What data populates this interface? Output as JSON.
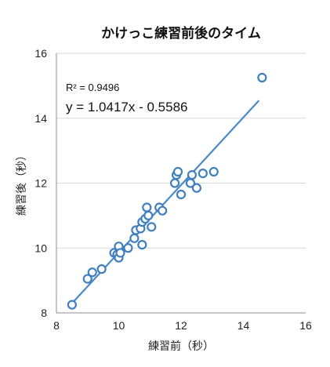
{
  "chart_data": {
    "type": "scatter",
    "title": "かけっこ練習前後のタイム",
    "xlabel": "練習前（秒）",
    "ylabel": "練習後（秒）",
    "xlim": [
      8,
      16
    ],
    "ylim": [
      8,
      16
    ],
    "x_ticks": [
      "8",
      "10",
      "12",
      "14",
      "16"
    ],
    "y_ticks": [
      "8",
      "10",
      "12",
      "14",
      "16"
    ],
    "grid": "horizontal",
    "r_squared_label": "R² = 0.9496",
    "equation_label": "y = 1.0417x - 0.5586",
    "trendline": {
      "slope": 1.0417,
      "intercept": -0.5586,
      "x_range": [
        8.5,
        14.5
      ]
    },
    "colors": {
      "marker": "#3f7fbf",
      "trendline": "#4a8ac9"
    },
    "series": [
      {
        "points": [
          [
            8.5,
            8.25
          ],
          [
            9.0,
            9.05
          ],
          [
            9.15,
            9.25
          ],
          [
            9.45,
            9.35
          ],
          [
            9.85,
            9.85
          ],
          [
            9.95,
            9.8
          ],
          [
            10.0,
            10.05
          ],
          [
            10.0,
            9.7
          ],
          [
            10.05,
            9.85
          ],
          [
            10.3,
            10.0
          ],
          [
            10.5,
            10.3
          ],
          [
            10.55,
            10.55
          ],
          [
            10.7,
            10.6
          ],
          [
            10.75,
            10.1
          ],
          [
            10.75,
            10.8
          ],
          [
            10.85,
            10.9
          ],
          [
            10.9,
            11.25
          ],
          [
            10.95,
            11.0
          ],
          [
            11.05,
            10.65
          ],
          [
            11.3,
            11.25
          ],
          [
            11.4,
            11.15
          ],
          [
            11.8,
            12.0
          ],
          [
            11.85,
            12.25
          ],
          [
            11.9,
            12.35
          ],
          [
            12.0,
            11.65
          ],
          [
            12.3,
            12.0
          ],
          [
            12.35,
            12.25
          ],
          [
            12.5,
            11.85
          ],
          [
            12.7,
            12.3
          ],
          [
            13.05,
            12.35
          ],
          [
            14.6,
            15.25
          ]
        ]
      }
    ]
  }
}
